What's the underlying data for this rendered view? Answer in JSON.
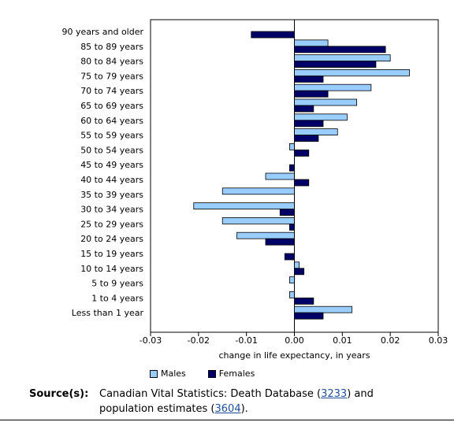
{
  "chart_data": {
    "type": "bar",
    "orientation": "horizontal",
    "categories": [
      "90 years and older",
      "85 to 89 years",
      "80 to 84 years",
      "75 to 79 years",
      "70 to 74 years",
      "65 to 69 years",
      "60 to 64 years",
      "55 to 59 years",
      "50 to 54 years",
      "45 to 49 years",
      "40 to 44 years",
      "35 to 39 years",
      "30 to 34 years",
      "25 to 29 years",
      "20 to 24 years",
      "15 to 19 years",
      "10 to 14 years",
      "5 to 9 years",
      "1 to 4 years",
      "Less than 1 year"
    ],
    "series": [
      {
        "name": "Males",
        "color": "#99ccff",
        "values": [
          0,
          0.007,
          0.02,
          0.024,
          0.016,
          0.013,
          0.011,
          0.009,
          -0.001,
          0,
          -0.006,
          -0.015,
          -0.021,
          -0.015,
          -0.012,
          0,
          0.001,
          -0.001,
          -0.001,
          0.012
        ]
      },
      {
        "name": "Females",
        "color": "#000066",
        "values": [
          -0.009,
          0.019,
          0.017,
          0.006,
          0.007,
          0.004,
          0.006,
          0.005,
          0.003,
          -0.001,
          0.003,
          0,
          -0.003,
          -0.001,
          -0.006,
          -0.002,
          0.002,
          0,
          0.004,
          0.006
        ]
      }
    ],
    "xlabel": "change in life expectancy, in years",
    "xlim": [
      -0.03,
      0.03
    ],
    "xticks": [
      "-0.03",
      "-0.02",
      "-0.01",
      "0.00",
      "0.01",
      "0.02",
      "0.03"
    ],
    "legend": "bottom",
    "grid": false
  },
  "source": {
    "label": "Source(s):",
    "text_before": "Canadian Vital Statistics: Death Database (",
    "link1": "3233",
    "text_middle": ") and population estimates (",
    "link2": "3604",
    "text_after": ")."
  }
}
